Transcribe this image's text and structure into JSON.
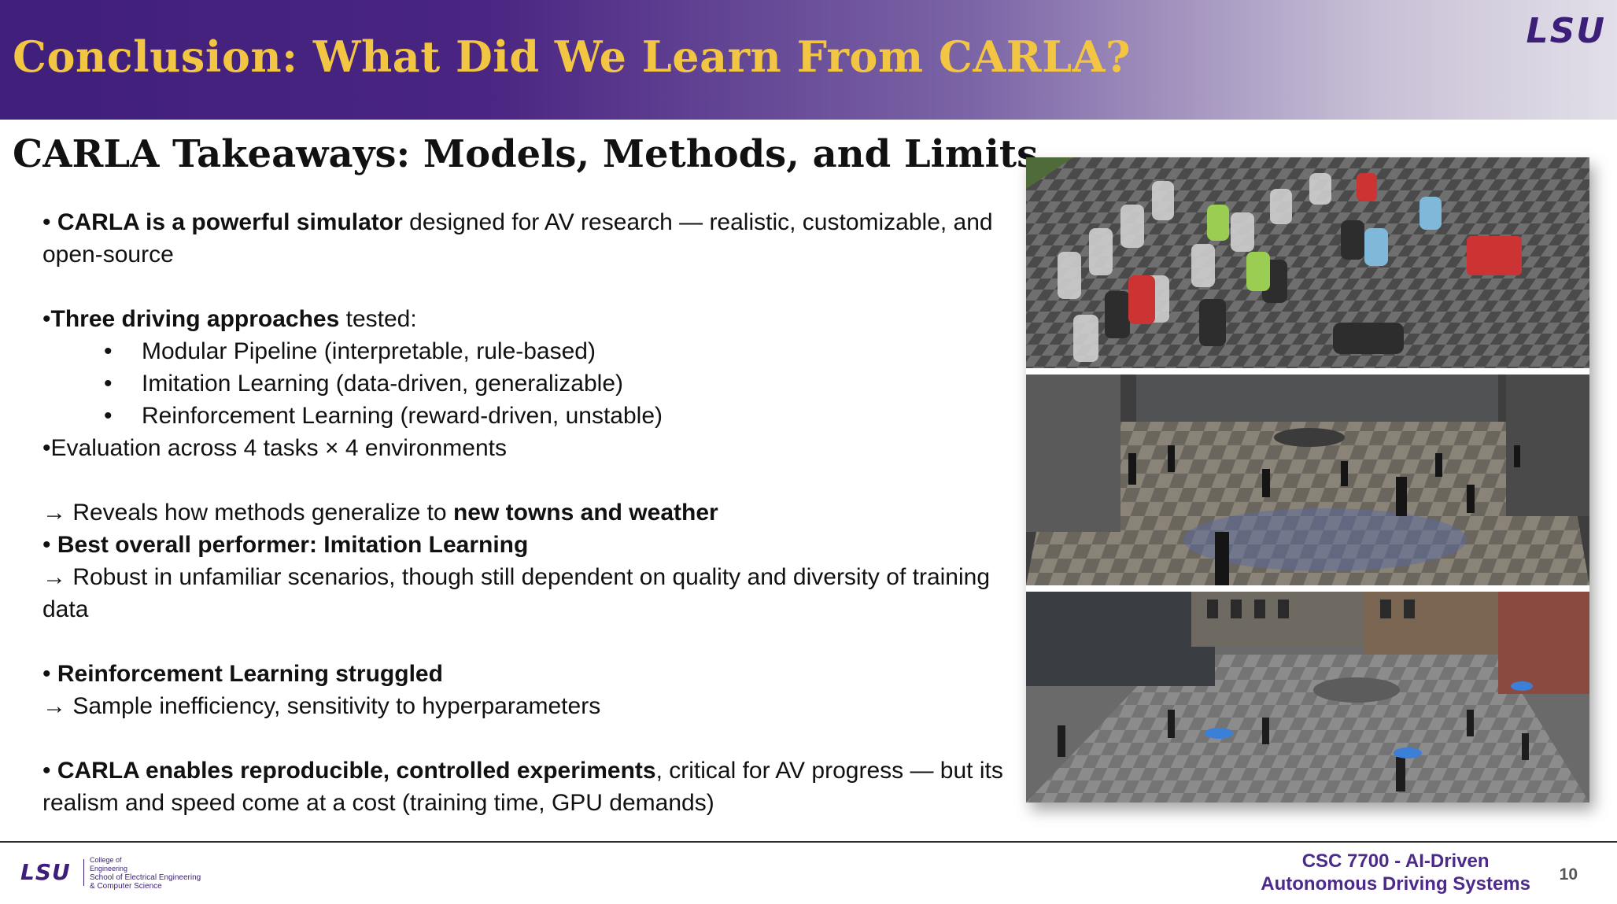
{
  "header": {
    "title": "Conclusion: What Did We Learn From CARLA?",
    "logo": "LSU"
  },
  "subtitle": "CARLA Takeaways: Models, Methods, and Limits",
  "content": {
    "p1_bold": "CARLA is a powerful simulator",
    "p1_rest": " designed for AV research — realistic, customizable, and open-source",
    "p2_bold": "Three driving approaches",
    "p2_rest": " tested:",
    "approaches": [
      "Modular Pipeline (interpretable, rule-based)",
      "Imitation Learning (data-driven, generalizable)",
      "Reinforcement Learning (reward-driven, unstable)"
    ],
    "p3": "•Evaluation across 4 tasks × 4 environments",
    "p4_prefix": "→ Reveals how methods generalize to ",
    "p4_bold": "new towns and weather",
    "p5_bold": "Best overall performer: Imitation Learning",
    "p6": "→ Robust in unfamiliar scenarios, though still dependent on quality and diversity of training data",
    "p7_bold": "Reinforcement Learning struggled",
    "p8": "→ Sample inefficiency, sensitivity to hyperparameters",
    "p9_bold": "CARLA enables reproducible, controlled experiments",
    "p9_rest": ", critical for AV progress — but its realism and speed come at a cost (training time, GPU demands)"
  },
  "footer": {
    "logo": "LSU",
    "unit_line1": "College of",
    "unit_line2": "Engineering",
    "unit_line3": "School of Electrical Engineering",
    "unit_line4": "& Computer Science",
    "course_line1": "CSC 7700 - AI-Driven",
    "course_line2": "Autonomous Driving Systems",
    "page_number": "10"
  },
  "colors": {
    "header_purple": "#3f1f7a",
    "title_gold": "#f2c542",
    "lsu_purple": "#3d1e78"
  }
}
